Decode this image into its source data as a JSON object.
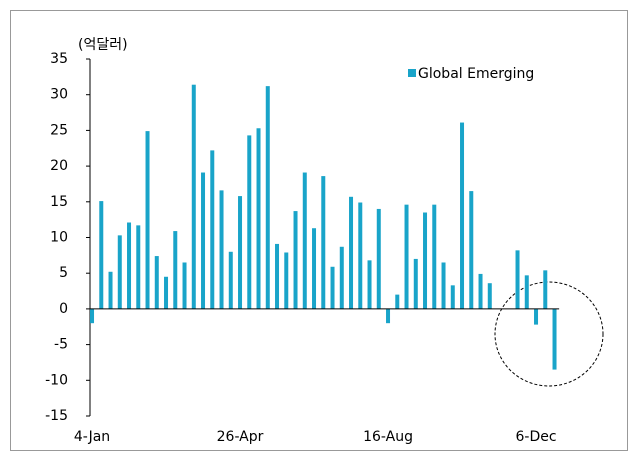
{
  "chart_data": {
    "type": "bar",
    "unit_label": "(억달러)",
    "categories": [
      "4-Jan",
      null,
      null,
      null,
      null,
      null,
      null,
      null,
      null,
      null,
      null,
      null,
      null,
      null,
      null,
      null,
      "26-Apr",
      null,
      null,
      null,
      null,
      null,
      null,
      null,
      null,
      null,
      null,
      null,
      null,
      null,
      null,
      null,
      "16-Aug",
      null,
      null,
      null,
      null,
      null,
      null,
      null,
      null,
      null,
      null,
      null,
      null,
      null,
      null,
      null,
      "6-Dec",
      null,
      null
    ],
    "series": [
      {
        "name": "Global Emerging",
        "color": "#19a4c9",
        "values": [
          -2.0,
          15.1,
          5.2,
          10.3,
          12.1,
          11.7,
          24.9,
          7.4,
          4.5,
          10.9,
          6.5,
          31.4,
          19.1,
          22.2,
          16.6,
          8.0,
          15.8,
          24.3,
          25.3,
          31.2,
          9.1,
          7.9,
          13.7,
          19.1,
          11.3,
          18.6,
          5.9,
          8.7,
          15.7,
          14.9,
          6.8,
          14.0,
          -2.0,
          2.0,
          14.6,
          7.0,
          13.5,
          14.6,
          6.5,
          3.3,
          26.1,
          16.5,
          4.9,
          3.6,
          null,
          null,
          8.2,
          4.7,
          -2.2,
          5.4,
          -8.5
        ]
      }
    ],
    "ylim": [
      -15,
      35
    ],
    "yticks": [
      -15,
      -10,
      -5,
      0,
      5,
      10,
      15,
      20,
      25,
      30,
      35
    ],
    "legend": "top-right"
  }
}
